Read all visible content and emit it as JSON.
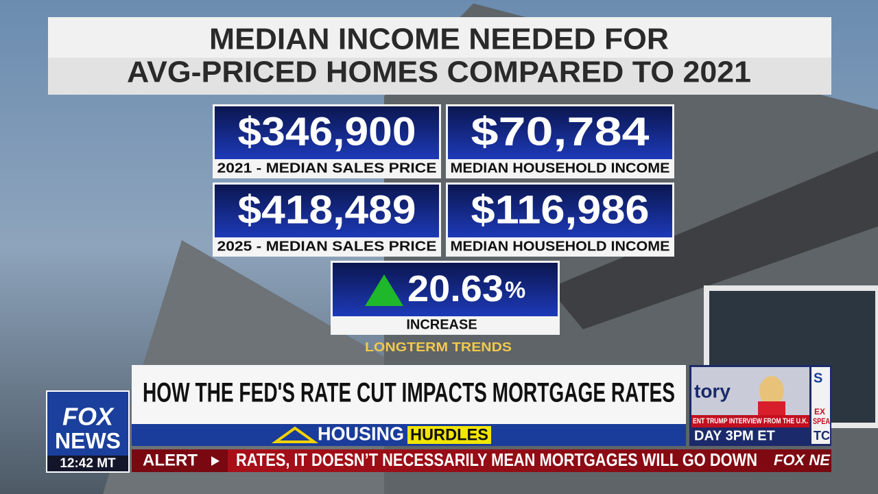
{
  "title": {
    "line1": "MEDIAN INCOME NEEDED FOR",
    "line2": "AVG-PRICED HOMES COMPARED TO 2021"
  },
  "cards": [
    {
      "value": "$346,900",
      "label": "2021 - MEDIAN SALES PRICE"
    },
    {
      "value": "$70,784",
      "label": "MEDIAN HOUSEHOLD INCOME"
    },
    {
      "value": "$418,489",
      "label": "2025 - MEDIAN SALES PRICE"
    },
    {
      "value": "$116,986",
      "label": "MEDIAN HOUSEHOLD INCOME"
    }
  ],
  "increase": {
    "value": "20.63",
    "unit": "%",
    "label": "INCREASE"
  },
  "source": "LONGTERM TRENDS",
  "headline": "HOW THE FED'S RATE CUT IMPACTS MORTGAGE RATES",
  "banner": {
    "word1": "HOUSING",
    "word2": "HURDLES"
  },
  "logo": {
    "line1": "FOX",
    "line2": "NEWS",
    "time": "12:42 MT"
  },
  "ticker": {
    "tag": "ALERT",
    "text": "RATES, IT DOESN’T NECESSARILY MEAN MORTGAGES WILL GO DOWN",
    "brand": "FOX NE"
  },
  "promo": {
    "show": "tory",
    "line1": "ENT TRUMP INTERVIEW FROM THE U.K.",
    "line2": "DAY 3PM ET",
    "side1": "EX",
    "side2": "SPEA",
    "side3": "TC",
    "side4": "S"
  }
}
